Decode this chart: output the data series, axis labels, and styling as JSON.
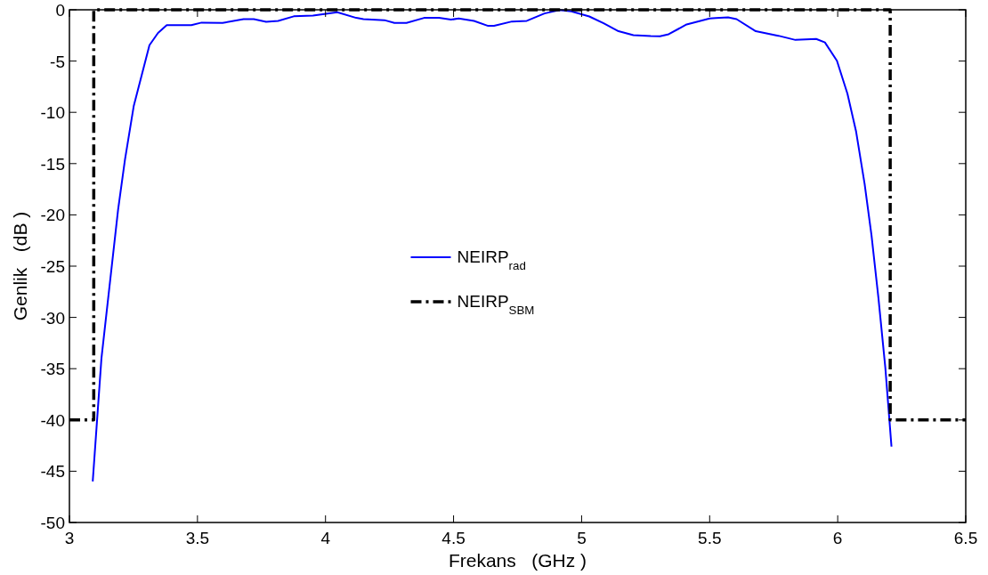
{
  "chart_data": {
    "type": "line",
    "xlabel": "Frekans   (GHz )",
    "ylabel": "Genlik   (dB )",
    "xlim": [
      3,
      6.5
    ],
    "xticks": [
      3,
      3.5,
      4,
      4.5,
      5,
      5.5,
      6,
      6.5
    ],
    "ylim": [
      -50,
      0
    ],
    "yticks": [
      -50,
      -45,
      -40,
      -35,
      -30,
      -25,
      -20,
      -15,
      -10,
      -5,
      0
    ],
    "grid": false,
    "legend": "center",
    "series": [
      {
        "name": "NEIRP$_{rad}$",
        "color": "#0000ff",
        "line_style": "solid",
        "x": [
          3.091,
          3.125,
          3.19,
          3.217,
          3.251,
          3.3125,
          3.346,
          3.38,
          3.476,
          3.516,
          3.598,
          3.68,
          3.72,
          3.768,
          3.815,
          3.876,
          3.951,
          4.046,
          4.12,
          4.148,
          4.23,
          4.269,
          4.316,
          4.385,
          4.443,
          4.49,
          4.52,
          4.58,
          4.635,
          4.658,
          4.728,
          4.786,
          4.855,
          4.913,
          4.96,
          5.03,
          5.086,
          5.144,
          5.202,
          5.27,
          5.306,
          5.34,
          5.41,
          5.5,
          5.524,
          5.572,
          5.605,
          5.68,
          5.768,
          5.835,
          5.916,
          5.95,
          5.997,
          6.038,
          6.072,
          6.105,
          6.132,
          6.159,
          6.186,
          6.21
        ],
        "values": [
          -46.0,
          -34.0,
          -19.5,
          -14.6,
          -9.4,
          -3.45,
          -2.26,
          -1.49,
          -1.49,
          -1.25,
          -1.28,
          -0.91,
          -0.91,
          -1.18,
          -1.08,
          -0.64,
          -0.57,
          -0.24,
          -0.79,
          -0.91,
          -1.01,
          -1.28,
          -1.28,
          -0.79,
          -0.79,
          -0.96,
          -0.85,
          -1.08,
          -1.57,
          -1.57,
          -1.14,
          -1.08,
          -0.36,
          -0.02,
          -0.15,
          -0.65,
          -1.31,
          -2.09,
          -2.47,
          -2.56,
          -2.58,
          -2.38,
          -1.43,
          -0.85,
          -0.81,
          -0.74,
          -0.91,
          -2.09,
          -2.53,
          -2.94,
          -2.84,
          -3.18,
          -4.97,
          -8.18,
          -11.9,
          -16.96,
          -22.0,
          -28.1,
          -34.9,
          -42.6
        ]
      },
      {
        "name": "NEIRP$_{SBM}$",
        "color": "#000000",
        "line_style": "dashdot",
        "x": [
          3,
          3.095,
          3.095,
          6.205,
          6.205,
          6.5
        ],
        "values": [
          -40,
          -40,
          0,
          0,
          -40,
          -40
        ]
      }
    ]
  }
}
